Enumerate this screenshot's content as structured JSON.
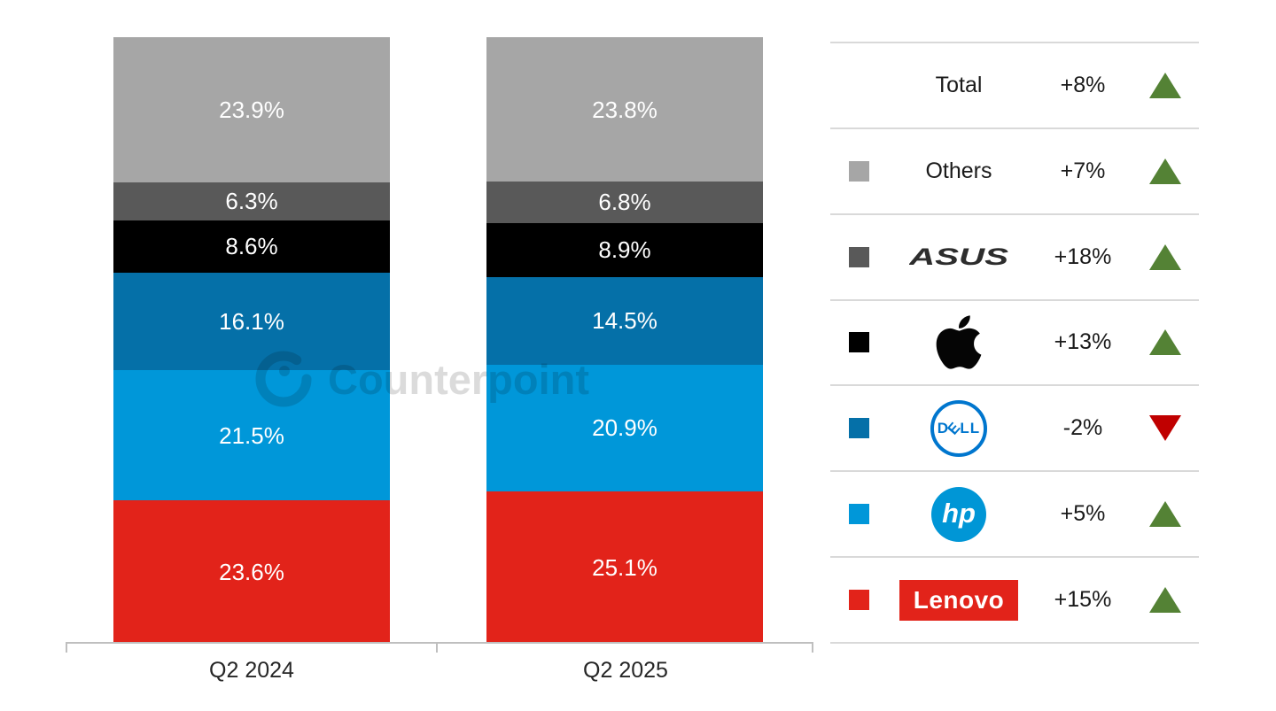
{
  "chart_data": {
    "type": "bar",
    "variant": "stacked-100",
    "categories": [
      "Q2 2024",
      "Q2 2025"
    ],
    "value_suffix": "%",
    "ylim": [
      0,
      100
    ],
    "grid": false,
    "legend_position": "right",
    "series": [
      {
        "name": "Lenovo",
        "color": "#e2231a",
        "values": [
          23.6,
          25.1
        ],
        "yoy_change": "+15%",
        "trend": "up"
      },
      {
        "name": "HP",
        "color": "#0097d9",
        "values": [
          21.5,
          20.9
        ],
        "yoy_change": "+5%",
        "trend": "up"
      },
      {
        "name": "Dell",
        "color": "#0570a8",
        "values": [
          16.1,
          14.5
        ],
        "yoy_change": "-2%",
        "trend": "down"
      },
      {
        "name": "Apple",
        "color": "#000000",
        "values": [
          8.6,
          8.9
        ],
        "yoy_change": "+13%",
        "trend": "up"
      },
      {
        "name": "ASUS",
        "color": "#595959",
        "values": [
          6.3,
          6.8
        ],
        "yoy_change": "+18%",
        "trend": "up"
      },
      {
        "name": "Others",
        "color": "#a6a6a6",
        "values": [
          23.9,
          23.8
        ],
        "yoy_change": "+7%",
        "trend": "up"
      }
    ],
    "total": {
      "label": "Total",
      "yoy_change": "+8%",
      "trend": "up"
    }
  },
  "legend": {
    "up_color": "#548235",
    "down_color": "#c00000",
    "rows": [
      {
        "label": "Total",
        "change": "+8%",
        "trend": "up"
      },
      {
        "label": "Others",
        "change": "+7%",
        "trend": "up",
        "swatch": "#a6a6a6"
      },
      {
        "label": "ASUS",
        "change": "+18%",
        "trend": "up",
        "swatch": "#595959",
        "logo_text": "ASUS",
        "logo_color": "#2d2d2d"
      },
      {
        "label": "Apple",
        "change": "+13%",
        "trend": "up",
        "swatch": "#000000",
        "logo_color": "#000000"
      },
      {
        "label": "Dell",
        "change": "-2%",
        "trend": "down",
        "swatch": "#0570a8",
        "logo_text_parts": [
          "D",
          "E",
          "LL"
        ],
        "logo_color": "#0076ce"
      },
      {
        "label": "HP",
        "change": "+5%",
        "trend": "up",
        "swatch": "#0097d9",
        "logo_text": "hp",
        "logo_color": "#0096d6"
      },
      {
        "label": "Lenovo",
        "change": "+15%",
        "trend": "up",
        "swatch": "#e2231a",
        "logo_text": "Lenovo",
        "logo_color": "#e2231a"
      }
    ]
  },
  "watermark": {
    "text": "Counterpoint",
    "color": "#000000",
    "opacity": 0.14
  }
}
